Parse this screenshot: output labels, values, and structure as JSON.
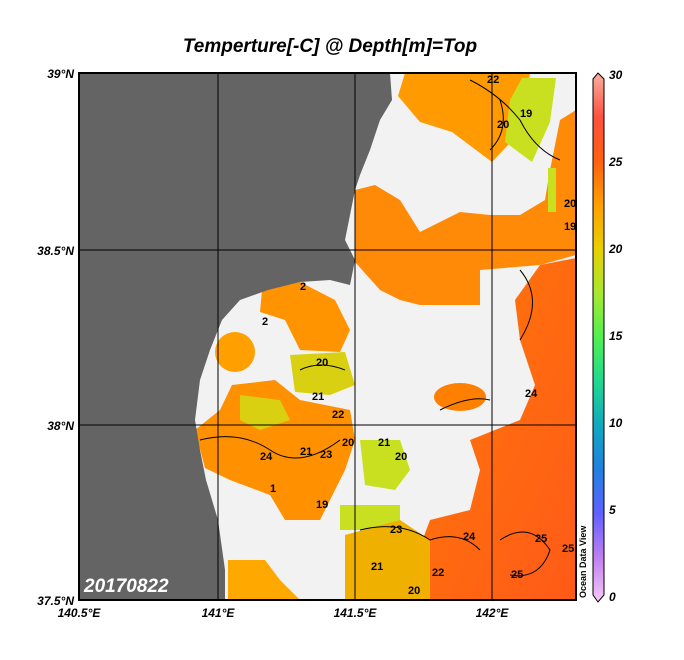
{
  "title": "Temperture[-C] @ Depth[m]=Top",
  "date_label": "20170822",
  "watermark": "Ocean Data View",
  "map": {
    "lon_ticks": [
      "140.5°E",
      "141°E",
      "141.5°E",
      "142°E"
    ],
    "lat_ticks": [
      "39°N",
      "38.5°N",
      "38°N",
      "37.5°N"
    ],
    "lon_range": [
      140.5,
      142.3
    ],
    "lat_range": [
      37.5,
      39.0
    ]
  },
  "colorbar": {
    "min": 0,
    "max": 30,
    "ticks": [
      "30",
      "25",
      "20",
      "15",
      "10",
      "5",
      "0"
    ],
    "colors": [
      "#f8c8f8",
      "#c080f0",
      "#6060ff",
      "#2080e0",
      "#10a8c0",
      "#20d890",
      "#50f050",
      "#a8e830",
      "#e8d000",
      "#ffa000",
      "#ff6010",
      "#ff5040",
      "#f8b0a0"
    ]
  },
  "colors": {
    "land": "#646464",
    "nodata": "#f2f2f2",
    "warm": "#ff6010",
    "orange": "#ff8c00",
    "yellow": "#f2c000",
    "yellowgreen": "#c8e020"
  },
  "contour_labels": [
    "22",
    "19",
    "20",
    "20",
    "19",
    "24",
    "20",
    "21",
    "22",
    "21",
    "20",
    "24",
    "21",
    "23",
    "20",
    "23",
    "24",
    "25",
    "25",
    "25",
    "21",
    "22",
    "20",
    "19",
    "2",
    "2",
    "1"
  ]
}
